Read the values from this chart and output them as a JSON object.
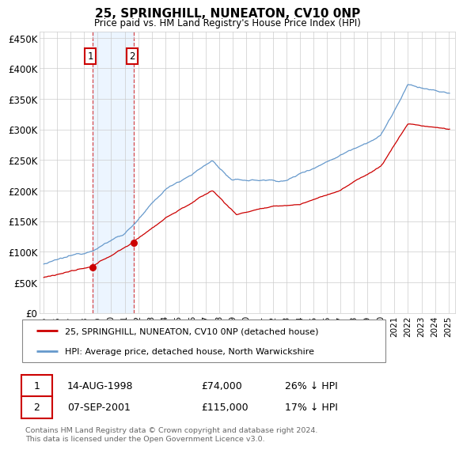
{
  "title": "25, SPRINGHILL, NUNEATON, CV10 0NP",
  "subtitle": "Price paid vs. HM Land Registry's House Price Index (HPI)",
  "red_label": "25, SPRINGHILL, NUNEATON, CV10 0NP (detached house)",
  "blue_label": "HPI: Average price, detached house, North Warwickshire",
  "footer": "Contains HM Land Registry data © Crown copyright and database right 2024.\nThis data is licensed under the Open Government Licence v3.0.",
  "sale1_date": "14-AUG-1998",
  "sale1_price": "£74,000",
  "sale1_hpi": "26% ↓ HPI",
  "sale1_year": 1998.62,
  "sale1_price_val": 74000,
  "sale2_date": "07-SEP-2001",
  "sale2_price": "£115,000",
  "sale2_hpi": "17% ↓ HPI",
  "sale2_year": 2001.68,
  "sale2_price_val": 115000,
  "ylim": [
    0,
    460000
  ],
  "yticks": [
    0,
    50000,
    100000,
    150000,
    200000,
    250000,
    300000,
    350000,
    400000,
    450000
  ],
  "ytick_labels": [
    "£0",
    "£50K",
    "£100K",
    "£150K",
    "£200K",
    "£250K",
    "£300K",
    "£350K",
    "£400K",
    "£450K"
  ],
  "xmin": 1994.7,
  "xmax": 2025.5,
  "background_color": "#ffffff",
  "grid_color": "#cccccc",
  "red_color": "#cc0000",
  "blue_color": "#6699cc",
  "shade_color": "#ddeeff",
  "vline_color": "#cc0000",
  "label_box_edge": "#cc0000"
}
